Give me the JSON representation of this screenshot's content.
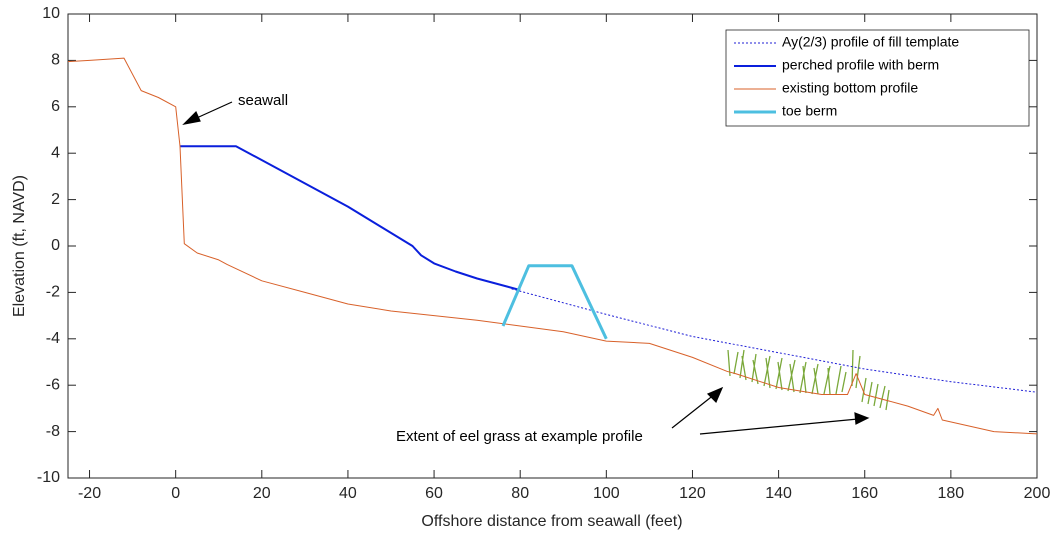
{
  "chart_data": {
    "type": "line",
    "xlabel": "Offshore distance from seawall (feet)",
    "ylabel": "Elevation (ft, NAVD)",
    "xlim": [
      -25,
      200
    ],
    "ylim": [
      -10,
      10
    ],
    "xticks": [
      -20,
      0,
      20,
      40,
      60,
      80,
      100,
      120,
      140,
      160,
      180,
      200
    ],
    "yticks": [
      -10,
      -8,
      -6,
      -4,
      -2,
      0,
      2,
      4,
      6,
      8,
      10
    ],
    "grid": false,
    "legend": "top-right",
    "annotations": [
      "seawall",
      "Extent of eel grass at example profile"
    ],
    "series": [
      {
        "name": "Ay(2/3) profile of fill template",
        "color": "#1f1fd6",
        "width": 1,
        "dash": "dotted",
        "x": [
          78,
          90,
          100,
          120,
          140,
          160,
          180,
          200
        ],
        "values": [
          -1.85,
          -2.45,
          -2.95,
          -3.9,
          -4.6,
          -5.3,
          -5.85,
          -6.3
        ]
      },
      {
        "name": "perched profile with berm",
        "color": "#0a1fdc",
        "width": 2,
        "dash": "solid",
        "x": [
          1,
          14,
          40,
          55,
          57,
          60,
          65,
          70,
          80
        ],
        "values": [
          4.3,
          4.3,
          1.7,
          0,
          -0.4,
          -0.75,
          -1.1,
          -1.4,
          -1.9
        ]
      },
      {
        "name": "existing bottom profile",
        "color": "#d8612a",
        "width": 1,
        "dash": "solid",
        "x": [
          -25,
          -20,
          -12,
          -8,
          -4,
          0,
          1,
          2,
          5,
          10,
          12,
          20,
          30,
          40,
          50,
          60,
          70,
          80,
          90,
          100,
          110,
          120,
          128,
          130,
          140,
          150,
          156,
          158,
          160,
          170,
          176,
          177,
          178,
          190,
          200
        ],
        "values": [
          7.95,
          8.0,
          8.1,
          6.7,
          6.4,
          6.0,
          4.3,
          0.1,
          -0.3,
          -0.6,
          -0.8,
          -1.5,
          -2.0,
          -2.5,
          -2.8,
          -3.0,
          -3.2,
          -3.45,
          -3.7,
          -4.1,
          -4.2,
          -4.8,
          -5.4,
          -5.5,
          -6.1,
          -6.4,
          -6.4,
          -5.5,
          -6.4,
          -6.9,
          -7.3,
          -7.0,
          -7.5,
          -8.0,
          -8.1
        ]
      },
      {
        "name": "toe berm",
        "color": "#4dbfe0",
        "width": 3,
        "dash": "solid",
        "x": [
          76,
          82,
          92,
          100
        ],
        "values": [
          -3.45,
          -0.85,
          -0.85,
          -4.0
        ]
      }
    ]
  }
}
